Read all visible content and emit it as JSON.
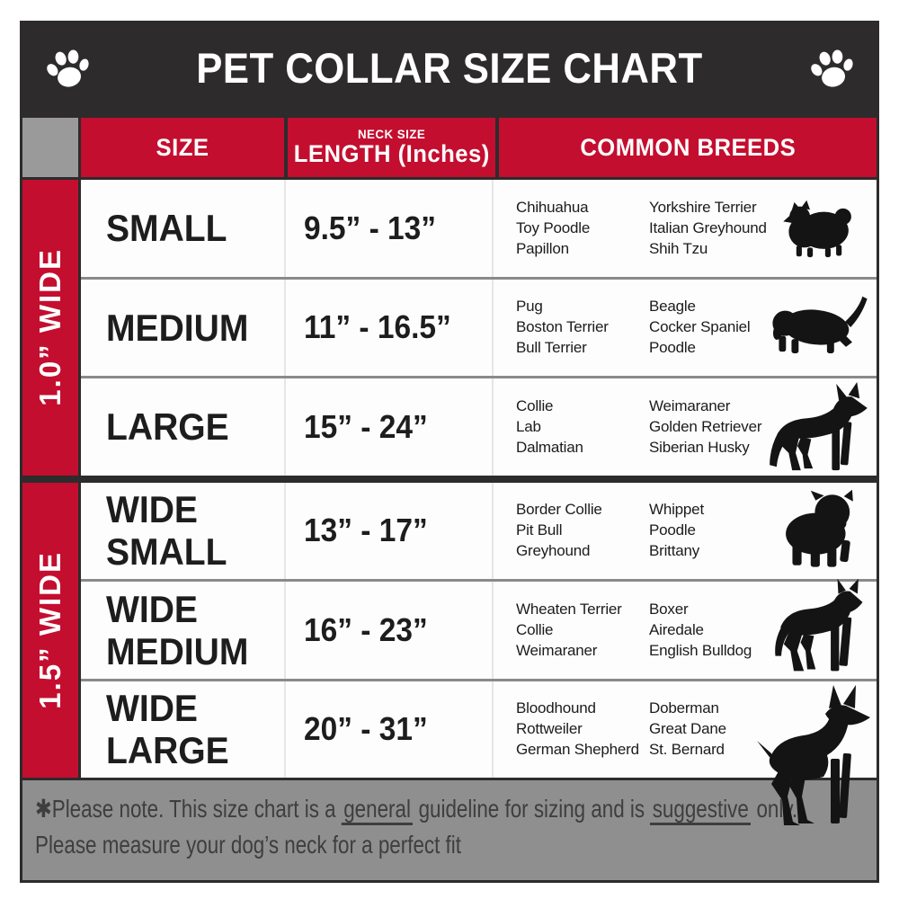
{
  "title": "PET COLLAR SIZE CHART",
  "icons": {
    "header_left": "paw-print",
    "header_right": "paw-print"
  },
  "colors": {
    "accent_red": "#c40e2f",
    "header_charcoal": "#2d2b2c",
    "corner_gray": "#9b9a9b",
    "footer_gray": "#8f8f8f"
  },
  "columns": {
    "size": "SIZE",
    "neck_top": "NECK SIZE",
    "neck_main": "LENGTH (Inches)",
    "breeds": "COMMON BREEDS"
  },
  "sections": [
    {
      "band_label": "1.0” WIDE",
      "rows": [
        {
          "size": "SMALL",
          "neck_range": "9.5” - 13”",
          "breeds_left": [
            "Chihuahua",
            "Toy Poodle",
            "Papillon"
          ],
          "breeds_right": [
            "Yorkshire Terrier",
            "Italian Greyhound",
            "Shih Tzu"
          ],
          "dog_icon": "pomeranian-silhouette"
        },
        {
          "size": "MEDIUM",
          "neck_range": "11” - 16.5”",
          "breeds_left": [
            "Pug",
            "Boston Terrier",
            "Bull Terrier"
          ],
          "breeds_right": [
            "Beagle",
            "Cocker Spaniel",
            "Poodle"
          ],
          "dog_icon": "dachshund-silhouette"
        },
        {
          "size": "LARGE",
          "neck_range": "15” - 24”",
          "breeds_left": [
            "Collie",
            "Lab",
            "Dalmatian"
          ],
          "breeds_right": [
            "Weimaraner",
            "Golden Retriever",
            "Siberian Husky"
          ],
          "dog_icon": "german-shepherd-silhouette"
        }
      ]
    },
    {
      "band_label": "1.5” WIDE",
      "rows": [
        {
          "size": "WIDE SMALL",
          "neck_range": "13” - 17”",
          "breeds_left": [
            "Border Collie",
            "Pit Bull",
            "Greyhound"
          ],
          "breeds_right": [
            "Whippet",
            "Poodle",
            "Brittany"
          ],
          "dog_icon": "bulldog-silhouette"
        },
        {
          "size": "WIDE MEDIUM",
          "neck_range": "16” - 23”",
          "breeds_left": [
            "Wheaten Terrier",
            "Collie",
            "Weimaraner"
          ],
          "breeds_right": [
            "Boxer",
            "Airedale",
            "English Bulldog"
          ],
          "dog_icon": "pit-bull-silhouette"
        },
        {
          "size": "WIDE LARGE",
          "neck_range": "20” - 31”",
          "breeds_left": [
            "Bloodhound",
            "Rottweiler",
            "German Shepherd"
          ],
          "breeds_right": [
            "Doberman",
            "Great Dane",
            "St. Bernard"
          ],
          "dog_icon": "doberman-silhouette"
        }
      ]
    }
  ],
  "footer": {
    "line1_prefix": "✱Please note. This size chart is a ",
    "line1_underline1": "general",
    "line1_mid": " guideline for sizing and is ",
    "line1_underline2": "suggestive",
    "line1_suffix": " only.",
    "line2": "Please measure your dog’s neck for a perfect fit"
  },
  "chart_data": {
    "type": "table",
    "title": "PET COLLAR SIZE CHART",
    "columns": [
      "SIZE",
      "NECK SIZE LENGTH (Inches)",
      "COMMON BREEDS"
    ],
    "groups": [
      {
        "collar_width": "1.0” WIDE",
        "rows": [
          {
            "size": "SMALL",
            "neck_length_inches": "9.5” - 13”",
            "common_breeds": [
              "Chihuahua",
              "Toy Poodle",
              "Papillon",
              "Yorkshire Terrier",
              "Italian Greyhound",
              "Shih Tzu"
            ]
          },
          {
            "size": "MEDIUM",
            "neck_length_inches": "11” - 16.5”",
            "common_breeds": [
              "Pug",
              "Boston Terrier",
              "Bull Terrier",
              "Beagle",
              "Cocker Spaniel",
              "Poodle"
            ]
          },
          {
            "size": "LARGE",
            "neck_length_inches": "15” - 24”",
            "common_breeds": [
              "Collie",
              "Lab",
              "Dalmatian",
              "Weimaraner",
              "Golden Retriever",
              "Siberian Husky"
            ]
          }
        ]
      },
      {
        "collar_width": "1.5” WIDE",
        "rows": [
          {
            "size": "WIDE SMALL",
            "neck_length_inches": "13” - 17”",
            "common_breeds": [
              "Border Collie",
              "Pit Bull",
              "Greyhound",
              "Whippet",
              "Poodle",
              "Brittany"
            ]
          },
          {
            "size": "WIDE MEDIUM",
            "neck_length_inches": "16” - 23”",
            "common_breeds": [
              "Wheaten Terrier",
              "Collie",
              "Weimaraner",
              "Boxer",
              "Airedale",
              "English Bulldog"
            ]
          },
          {
            "size": "WIDE LARGE",
            "neck_length_inches": "20” - 31”",
            "common_breeds": [
              "Bloodhound",
              "Rottweiler",
              "German Shepherd",
              "Doberman",
              "Great Dane",
              "St. Bernard"
            ]
          }
        ]
      }
    ]
  }
}
